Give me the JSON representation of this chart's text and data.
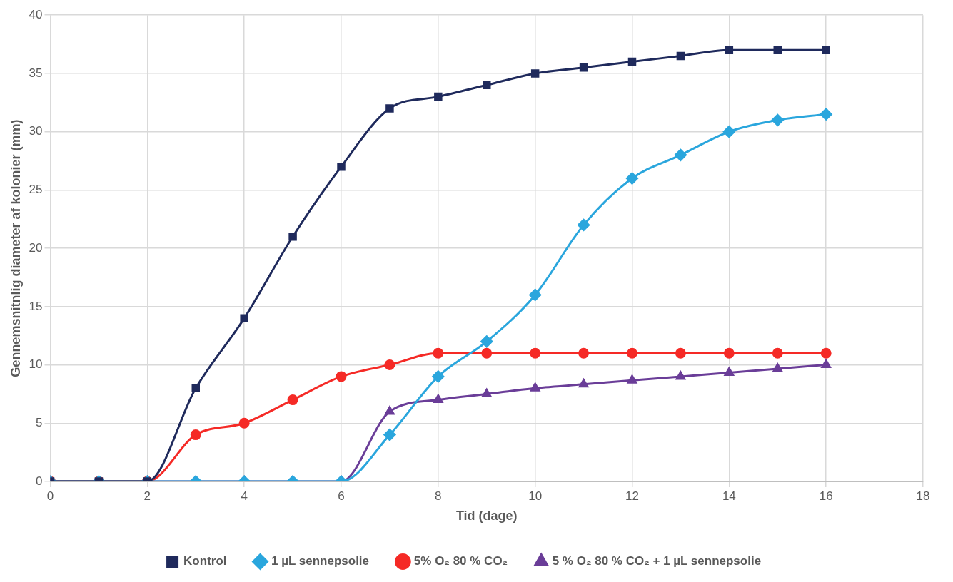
{
  "chart_data": {
    "type": "line",
    "xlabel": "Tid (dage)",
    "ylabel": "Gennemsnitnlig diameter af kolonier (mm)",
    "x": [
      0,
      1,
      2,
      3,
      4,
      5,
      6,
      7,
      8,
      9,
      10,
      11,
      12,
      13,
      14,
      15,
      16
    ],
    "xlim": [
      0,
      18
    ],
    "xticks": [
      0,
      2,
      4,
      6,
      8,
      10,
      12,
      14,
      16,
      18
    ],
    "ylim": [
      0,
      40
    ],
    "yticks": [
      0,
      5,
      10,
      15,
      20,
      25,
      30,
      35,
      40
    ],
    "grid": true,
    "legend": "bottom",
    "series": [
      {
        "name": "Kontrol",
        "color": "#1f2a5c",
        "marker": "square",
        "values": [
          0,
          0,
          0,
          8,
          14,
          21,
          27,
          32,
          33,
          34,
          35,
          35.5,
          36,
          36.5,
          37,
          37,
          37
        ]
      },
      {
        "name": "1 µL sennepsolie",
        "color": "#2aa6dd",
        "marker": "diamond",
        "values": [
          0,
          0,
          0,
          0,
          0,
          0,
          0,
          4,
          9,
          12,
          16,
          22,
          26,
          28,
          30,
          31,
          31.5
        ]
      },
      {
        "name": "5% O₂ 80 % CO₂",
        "color": "#f52a26",
        "marker": "circle",
        "values": [
          0,
          0,
          0,
          4,
          5,
          7,
          9,
          10,
          11,
          11,
          11,
          11,
          11,
          11,
          11,
          11,
          11
        ]
      },
      {
        "name": "5 % O₂ 80 % CO₂ + 1 µL sennepsolie",
        "color": "#6a3d98",
        "marker": "triangle",
        "values": [
          0,
          0,
          0,
          0,
          0,
          0,
          0,
          6,
          7,
          7.5,
          8,
          8.33,
          8.67,
          9,
          9.33,
          9.67,
          10
        ]
      }
    ]
  }
}
